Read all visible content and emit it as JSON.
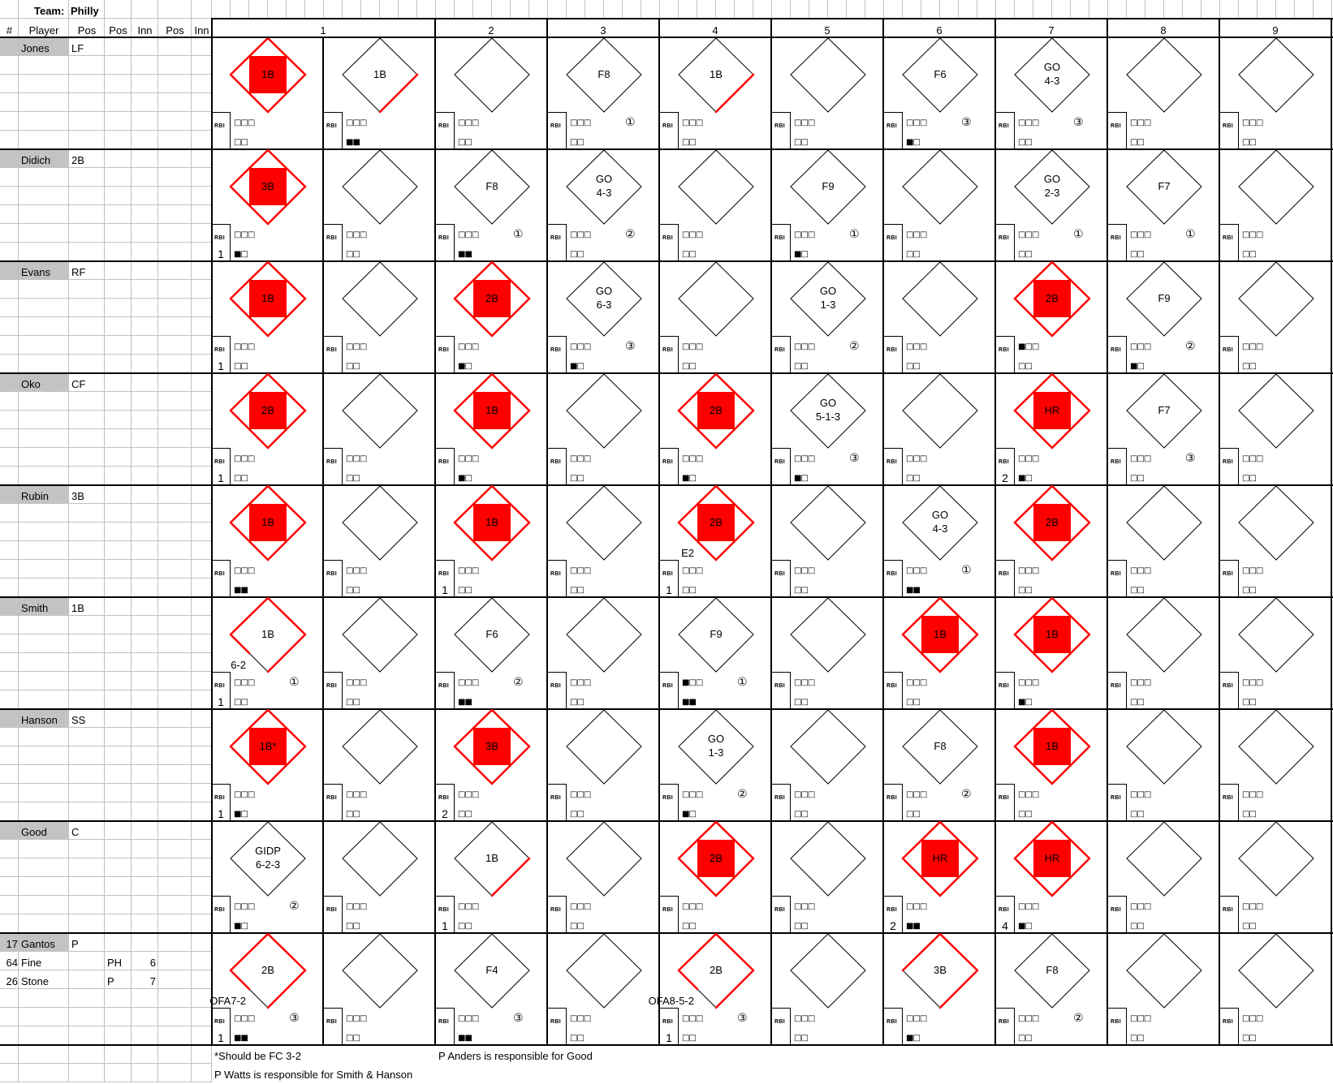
{
  "team": {
    "label": "Team:",
    "name": "Philly"
  },
  "headers": [
    "#",
    "Player",
    "Pos",
    "Pos",
    "Inn",
    "Pos",
    "Inn"
  ],
  "innings": [
    "1",
    "2",
    "3",
    "4",
    "5",
    "6",
    "7",
    "8",
    "9"
  ],
  "rbi_label": "RBI",
  "colors": {
    "hit": "#ff0000",
    "line": "#000000",
    "grid": "#c0c0c0",
    "name_bg": "#c4c4c4"
  },
  "players": [
    {
      "num": "",
      "name": "Jones",
      "pos": "LF",
      "subs": []
    },
    {
      "num": "",
      "name": "Didich",
      "pos": "2B",
      "subs": []
    },
    {
      "num": "",
      "name": "Evans",
      "pos": "RF",
      "subs": []
    },
    {
      "num": "",
      "name": "Oko",
      "pos": "CF",
      "subs": []
    },
    {
      "num": "",
      "name": "Rubin",
      "pos": "3B",
      "subs": []
    },
    {
      "num": "",
      "name": "Smith",
      "pos": "1B",
      "subs": []
    },
    {
      "num": "",
      "name": "Hanson",
      "pos": "SS",
      "subs": []
    },
    {
      "num": "",
      "name": "Good",
      "pos": "C",
      "subs": []
    },
    {
      "num": "17",
      "name": "Gantos",
      "pos": "P",
      "subs": [
        {
          "num": "64",
          "name": "Fine",
          "pos": "PH",
          "inn": "6"
        },
        {
          "num": "26",
          "name": "Stone",
          "pos": "P",
          "inn": "7"
        }
      ]
    }
  ],
  "atbats": [
    [
      {
        "r": [
          "1B"
        ],
        "bases": 4,
        "balls": "□□□",
        "strikes": "□□"
      },
      {
        "r": [
          "1B"
        ],
        "bases": 1,
        "balls": "□□□",
        "strikes": "■■"
      },
      {
        "r": [],
        "bases": 0,
        "balls": "□□□",
        "strikes": "□□"
      },
      {
        "r": [
          "F8"
        ],
        "bases": 0,
        "outs": "①",
        "balls": "□□□",
        "strikes": "□□"
      },
      {
        "r": [
          "1B"
        ],
        "bases": 1,
        "balls": "□□□",
        "strikes": "□□"
      },
      {
        "r": [],
        "bases": 0,
        "balls": "□□□",
        "strikes": "□□"
      },
      {
        "r": [
          "F6"
        ],
        "bases": 0,
        "outs": "③",
        "balls": "□□□",
        "strikes": "■□"
      },
      {
        "r": [
          "GO",
          "4-3"
        ],
        "bases": 0,
        "outs": "③",
        "balls": "□□□",
        "strikes": "□□"
      },
      {
        "r": [],
        "bases": 0,
        "balls": "□□□",
        "strikes": "□□"
      },
      {
        "r": [],
        "bases": 0,
        "balls": "□□□",
        "strikes": "□□"
      }
    ],
    [
      {
        "r": [
          "3B"
        ],
        "bases": 4,
        "rbi": "1",
        "balls": "□□□",
        "strikes": "■□"
      },
      {
        "r": [],
        "bases": 0,
        "balls": "□□□",
        "strikes": "□□"
      },
      {
        "r": [
          "F8"
        ],
        "bases": 0,
        "outs": "①",
        "balls": "□□□",
        "strikes": "■■"
      },
      {
        "r": [
          "GO",
          "4-3"
        ],
        "bases": 0,
        "outs": "②",
        "balls": "□□□",
        "strikes": "□□"
      },
      {
        "r": [],
        "bases": 0,
        "balls": "□□□",
        "strikes": "□□"
      },
      {
        "r": [
          "F9"
        ],
        "bases": 0,
        "outs": "①",
        "balls": "□□□",
        "strikes": "■□"
      },
      {
        "r": [],
        "bases": 0,
        "balls": "□□□",
        "strikes": "□□"
      },
      {
        "r": [
          "GO",
          "2-3"
        ],
        "bases": 0,
        "outs": "①",
        "balls": "□□□",
        "strikes": "□□"
      },
      {
        "r": [
          "F7"
        ],
        "bases": 0,
        "outs": "①",
        "balls": "□□□",
        "strikes": "□□"
      },
      {
        "r": [],
        "bases": 0,
        "balls": "□□□",
        "strikes": "□□"
      }
    ],
    [
      {
        "r": [
          "1B"
        ],
        "bases": 4,
        "rbi": "1",
        "balls": "□□□",
        "strikes": "□□"
      },
      {
        "r": [],
        "bases": 0,
        "balls": "□□□",
        "strikes": "□□"
      },
      {
        "r": [
          "2B"
        ],
        "bases": 4,
        "balls": "□□□",
        "strikes": "■□"
      },
      {
        "r": [
          "GO",
          "6-3"
        ],
        "bases": 0,
        "outs": "③",
        "balls": "□□□",
        "strikes": "■□"
      },
      {
        "r": [],
        "bases": 0,
        "balls": "□□□",
        "strikes": "□□"
      },
      {
        "r": [
          "GO",
          "1-3"
        ],
        "bases": 0,
        "outs": "②",
        "balls": "□□□",
        "strikes": "□□"
      },
      {
        "r": [],
        "bases": 0,
        "balls": "□□□",
        "strikes": "□□"
      },
      {
        "r": [
          "2B"
        ],
        "bases": 4,
        "balls": "■□□",
        "strikes": "□□"
      },
      {
        "r": [
          "F9"
        ],
        "bases": 0,
        "outs": "②",
        "balls": "□□□",
        "strikes": "■□"
      },
      {
        "r": [],
        "bases": 0,
        "balls": "□□□",
        "strikes": "□□"
      }
    ],
    [
      {
        "r": [
          "2B"
        ],
        "bases": 4,
        "rbi": "1",
        "balls": "□□□",
        "strikes": "□□"
      },
      {
        "r": [],
        "bases": 0,
        "balls": "□□□",
        "strikes": "□□"
      },
      {
        "r": [
          "1B"
        ],
        "bases": 4,
        "balls": "□□□",
        "strikes": "■□"
      },
      {
        "r": [],
        "bases": 0,
        "balls": "□□□",
        "strikes": "□□"
      },
      {
        "r": [
          "2B"
        ],
        "bases": 4,
        "balls": "□□□",
        "strikes": "■□"
      },
      {
        "r": [
          "GO",
          "5-1-3"
        ],
        "bases": 0,
        "outs": "③",
        "balls": "□□□",
        "strikes": "■□"
      },
      {
        "r": [],
        "bases": 0,
        "balls": "□□□",
        "strikes": "□□"
      },
      {
        "r": [
          "HR"
        ],
        "bases": 4,
        "rbi": "2",
        "balls": "□□□",
        "strikes": "■□"
      },
      {
        "r": [
          "F7"
        ],
        "bases": 0,
        "outs": "③",
        "balls": "□□□",
        "strikes": "□□"
      },
      {
        "r": [],
        "bases": 0,
        "balls": "□□□",
        "strikes": "□□"
      }
    ],
    [
      {
        "r": [
          "1B"
        ],
        "bases": 4,
        "balls": "□□□",
        "strikes": "■■"
      },
      {
        "r": [],
        "bases": 0,
        "balls": "□□□",
        "strikes": "□□"
      },
      {
        "r": [
          "1B"
        ],
        "bases": 4,
        "rbi": "1",
        "balls": "□□□",
        "strikes": "□□"
      },
      {
        "r": [],
        "bases": 0,
        "balls": "□□□",
        "strikes": "□□"
      },
      {
        "r": [
          "2B"
        ],
        "bases": 4,
        "note": "E2",
        "rbi": "1",
        "balls": "□□□",
        "strikes": "□□"
      },
      {
        "r": [],
        "bases": 0,
        "balls": "□□□",
        "strikes": "□□"
      },
      {
        "r": [
          "GO",
          "4-3"
        ],
        "bases": 0,
        "outs": "①",
        "balls": "□□□",
        "strikes": "■■"
      },
      {
        "r": [
          "2B"
        ],
        "bases": 4,
        "balls": "□□□",
        "strikes": "□□"
      },
      {
        "r": [],
        "bases": 0,
        "balls": "□□□",
        "strikes": "□□"
      },
      {
        "r": [],
        "bases": 0,
        "balls": "□□□",
        "strikes": "□□"
      }
    ],
    [
      {
        "r": [
          "1B"
        ],
        "bases": 3.5,
        "note": "6-2",
        "outs": "①",
        "rbi": "1",
        "balls": "□□□",
        "strikes": "□□"
      },
      {
        "r": [],
        "bases": 0,
        "balls": "□□□",
        "strikes": "□□"
      },
      {
        "r": [
          "F6"
        ],
        "bases": 0,
        "outs": "②",
        "balls": "□□□",
        "strikes": "■■"
      },
      {
        "r": [],
        "bases": 0,
        "balls": "□□□",
        "strikes": "□□"
      },
      {
        "r": [
          "F9"
        ],
        "bases": 0,
        "outs": "①",
        "balls": "■□□",
        "strikes": "■■"
      },
      {
        "r": [],
        "bases": 0,
        "balls": "□□□",
        "strikes": "□□"
      },
      {
        "r": [
          "1B"
        ],
        "bases": 4,
        "balls": "□□□",
        "strikes": "□□"
      },
      {
        "r": [
          "1B"
        ],
        "bases": 4,
        "balls": "□□□",
        "strikes": "■□"
      },
      {
        "r": [],
        "bases": 0,
        "balls": "□□□",
        "strikes": "□□"
      },
      {
        "r": [],
        "bases": 0,
        "balls": "□□□",
        "strikes": "□□"
      }
    ],
    [
      {
        "r": [
          "1B*"
        ],
        "bases": 4,
        "rbi": "1",
        "balls": "□□□",
        "strikes": "■□"
      },
      {
        "r": [],
        "bases": 0,
        "balls": "□□□",
        "strikes": "□□"
      },
      {
        "r": [
          "3B"
        ],
        "bases": 4,
        "rbi": "2",
        "balls": "□□□",
        "strikes": "□□"
      },
      {
        "r": [],
        "bases": 0,
        "balls": "□□□",
        "strikes": "□□"
      },
      {
        "r": [
          "GO",
          "1-3"
        ],
        "bases": 0,
        "outs": "②",
        "balls": "□□□",
        "strikes": "■□"
      },
      {
        "r": [],
        "bases": 0,
        "balls": "□□□",
        "strikes": "□□"
      },
      {
        "r": [
          "F8"
        ],
        "bases": 0,
        "outs": "②",
        "balls": "□□□",
        "strikes": "□□"
      },
      {
        "r": [
          "1B"
        ],
        "bases": 4,
        "balls": "□□□",
        "strikes": "□□"
      },
      {
        "r": [],
        "bases": 0,
        "balls": "□□□",
        "strikes": "□□"
      },
      {
        "r": [],
        "bases": 0,
        "balls": "□□□",
        "strikes": "□□"
      }
    ],
    [
      {
        "r": [
          "GIDP",
          "6-2-3"
        ],
        "bases": 0,
        "outs": "②",
        "balls": "□□□",
        "strikes": "■□"
      },
      {
        "r": [],
        "bases": 0,
        "balls": "□□□",
        "strikes": "□□"
      },
      {
        "r": [
          "1B"
        ],
        "bases": 1,
        "rbi": "1",
        "balls": "□□□",
        "strikes": "□□"
      },
      {
        "r": [],
        "bases": 0,
        "balls": "□□□",
        "strikes": "□□"
      },
      {
        "r": [
          "2B"
        ],
        "bases": 4,
        "balls": "□□□",
        "strikes": "□□"
      },
      {
        "r": [],
        "bases": 0,
        "balls": "□□□",
        "strikes": "□□"
      },
      {
        "r": [
          "HR"
        ],
        "bases": 4,
        "rbi": "2",
        "balls": "□□□",
        "strikes": "■■"
      },
      {
        "r": [
          "HR"
        ],
        "bases": 4,
        "rbi": "4",
        "balls": "□□□",
        "strikes": "■□"
      },
      {
        "r": [],
        "bases": 0,
        "balls": "□□□",
        "strikes": "□□"
      },
      {
        "r": [],
        "bases": 0,
        "balls": "□□□",
        "strikes": "□□"
      }
    ],
    [
      {
        "r": [
          "2B"
        ],
        "bases": 3.5,
        "note": "OFA7-2",
        "outs": "③",
        "rbi": "1",
        "balls": "□□□",
        "strikes": "■■"
      },
      {
        "r": [],
        "bases": 0,
        "balls": "□□□",
        "strikes": "□□"
      },
      {
        "r": [
          "F4"
        ],
        "bases": 0,
        "outs": "③",
        "balls": "□□□",
        "strikes": "■■"
      },
      {
        "r": [],
        "bases": 0,
        "balls": "□□□",
        "strikes": "□□"
      },
      {
        "r": [
          "2B"
        ],
        "bases": 3.5,
        "note": "OFA8-5-2",
        "outs": "③",
        "rbi": "1",
        "balls": "□□□",
        "strikes": "□□"
      },
      {
        "r": [],
        "bases": 0,
        "balls": "□□□",
        "strikes": "□□"
      },
      {
        "r": [
          "3B"
        ],
        "bases": 3,
        "balls": "□□□",
        "strikes": "■□"
      },
      {
        "r": [
          "F8"
        ],
        "bases": 0,
        "outs": "②",
        "balls": "□□□",
        "strikes": "□□"
      },
      {
        "r": [],
        "bases": 0,
        "balls": "□□□",
        "strikes": "□□"
      },
      {
        "r": [],
        "bases": 0,
        "balls": "□□□",
        "strikes": "□□"
      }
    ]
  ],
  "footnotes": {
    "fc_note": "*Should be FC 3-2",
    "anders_note": "P Anders is responsible for Good",
    "watts_note": "P Watts is responsible for Smith & Hanson"
  }
}
